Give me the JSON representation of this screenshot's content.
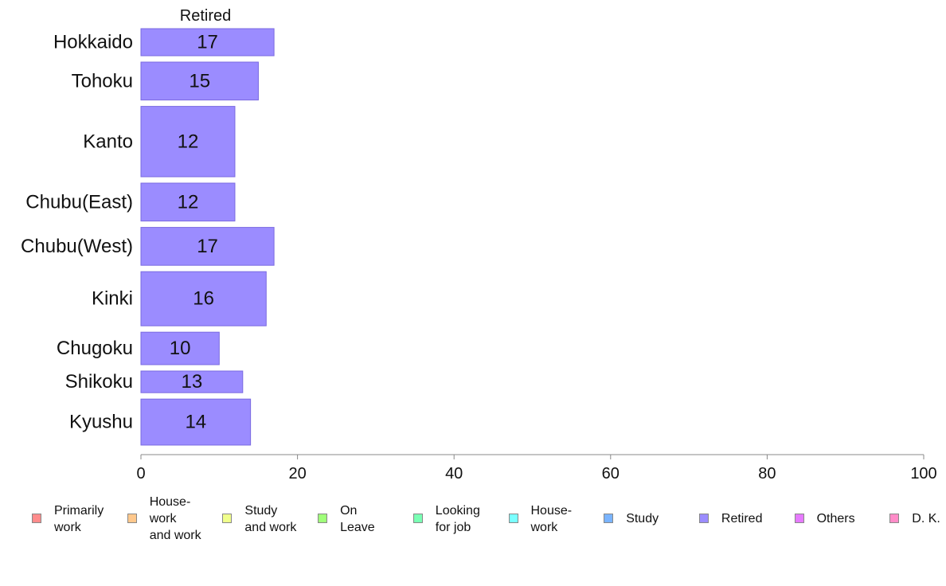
{
  "chart_data": {
    "type": "bar",
    "orientation": "horizontal",
    "panel_title": "Retired",
    "categories": [
      "Hokkaido",
      "Tohoku",
      "Kanto",
      "Chubu(East)",
      "Chubu(West)",
      "Kinki",
      "Chugoku",
      "Shikoku",
      "Kyushu"
    ],
    "values": [
      17,
      15,
      12,
      12,
      17,
      16,
      10,
      13,
      14
    ],
    "relative_bar_widths": [
      5,
      7,
      13,
      7,
      7,
      10,
      6,
      4,
      8.5
    ],
    "xlim": [
      0,
      100
    ],
    "xticks": [
      0,
      20,
      40,
      60,
      80,
      100
    ],
    "bar_color": "#9b8cff",
    "bar_edge_color": "#7a6ae0",
    "legend_position": "bottom",
    "legend": [
      {
        "label": "Primarily\nwork",
        "color": "#ff8c8c"
      },
      {
        "label": "House-\nwork\nand work",
        "color": "#ffc88c"
      },
      {
        "label": "Study\nand work",
        "color": "#f0ff8c"
      },
      {
        "label": "On\nLeave",
        "color": "#a0ff7a"
      },
      {
        "label": "Looking\nfor job",
        "color": "#7affb4"
      },
      {
        "label": "House-\nwork",
        "color": "#7affff"
      },
      {
        "label": "Study",
        "color": "#7ab4ff"
      },
      {
        "label": "Retired",
        "color": "#9b8cff"
      },
      {
        "label": "Others",
        "color": "#e67aff"
      },
      {
        "label": "D. K.",
        "color": "#ff8cc8"
      }
    ]
  }
}
